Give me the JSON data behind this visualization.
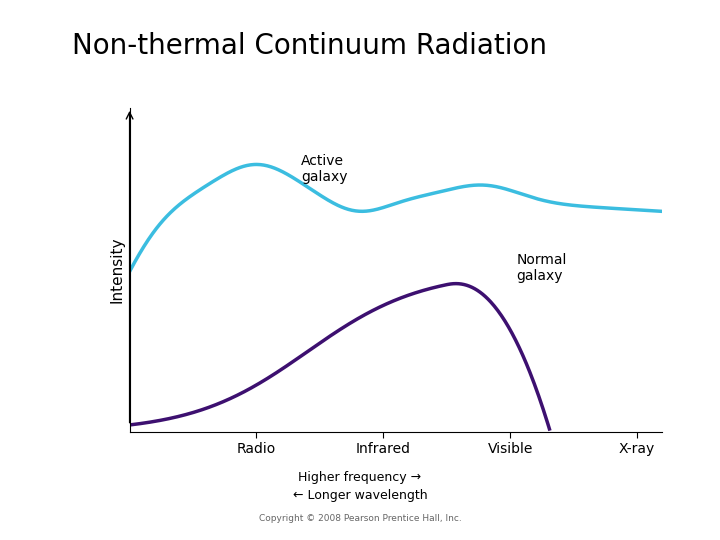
{
  "title": "Non-thermal Continuum Radiation",
  "title_fontsize": 20,
  "ylabel": "Intensity",
  "ylabel_fontsize": 11,
  "x_ticks": [
    1,
    2,
    3,
    4
  ],
  "x_tick_labels": [
    "Radio",
    "Infrared",
    "Visible",
    "X-ray"
  ],
  "active_galaxy_color": "#3BBDE0",
  "normal_galaxy_color": "#3D1070",
  "active_galaxy_label": "Active\ngalaxy",
  "normal_galaxy_label": "Normal\ngalaxy",
  "higher_freq_text": "Higher frequency →",
  "longer_wave_text": "← Longer wavelength",
  "copyright_text": "Copyright © 2008 Pearson Prentice Hall, Inc.",
  "line_width": 2.5,
  "background_color": "#ffffff"
}
